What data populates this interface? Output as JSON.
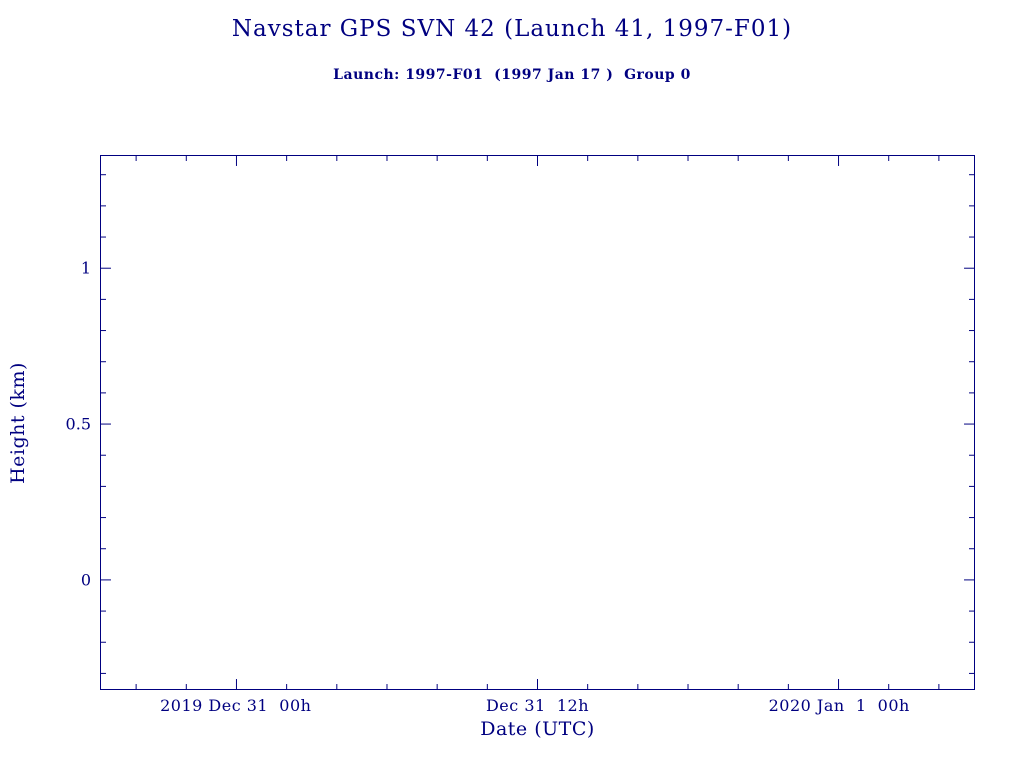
{
  "page": {
    "background": "#ffffff",
    "accent_color": "#000080"
  },
  "chart_data": {
    "type": "line",
    "title": "Navstar GPS SVN 42 (Launch 41, 1997-F01)",
    "subtitle": "Launch: 1997-F01  (1997 Jan 17 )  Group 0",
    "xlabel": "Date (UTC)",
    "ylabel": "Height (km)",
    "axis_color": "#000080",
    "grid": false,
    "legend": "none",
    "x_axis": {
      "unit": "hours since 2019 Dec 31 00:00 UTC",
      "range": [
        -5.4,
        29.4
      ],
      "major_ticks": [
        {
          "value": 0,
          "label": "2019 Dec 31  00h"
        },
        {
          "value": 12,
          "label": "Dec 31  12h"
        },
        {
          "value": 24,
          "label": "2020 Jan  1  00h"
        }
      ],
      "minor_tick_step": 2
    },
    "y_axis": {
      "range": [
        -0.35,
        1.36
      ],
      "major_ticks": [
        {
          "value": 0,
          "label": "0"
        },
        {
          "value": 0.5,
          "label": "0.5"
        },
        {
          "value": 1,
          "label": "1"
        }
      ],
      "minor_tick_step": 0.1
    },
    "series": []
  }
}
